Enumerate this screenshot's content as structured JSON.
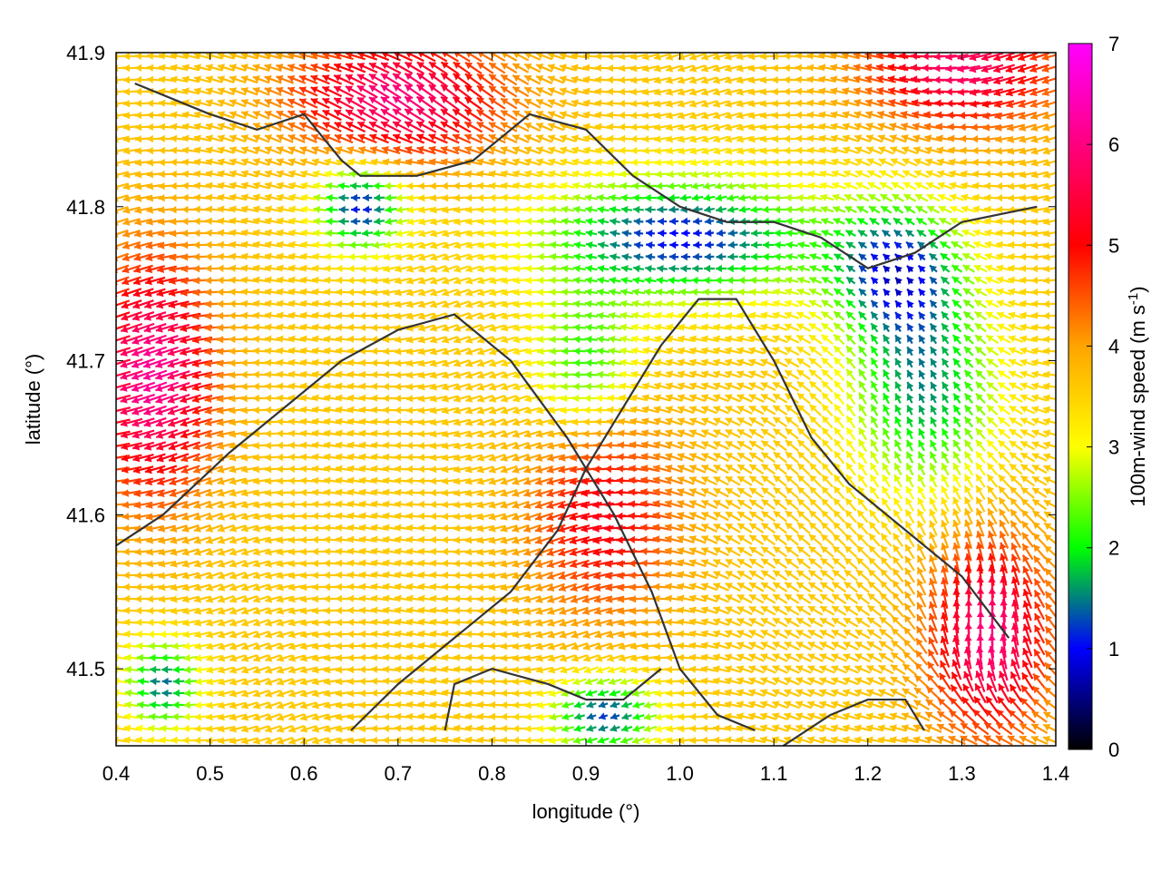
{
  "chart_data": {
    "type": "vector-field",
    "xlabel": "longitude (°)",
    "ylabel": "latitude (°)",
    "xlim": [
      0.4,
      1.4
    ],
    "ylim": [
      41.45,
      41.9
    ],
    "xticks": [
      "0.4",
      "0.5",
      "0.6",
      "0.7",
      "0.8",
      "0.9",
      "1.0",
      "1.1",
      "1.2",
      "1.3",
      "1.4"
    ],
    "yticks": [
      "41.5",
      "41.6",
      "41.7",
      "41.8",
      "41.9"
    ],
    "colorbar": {
      "label_main": "100m-wind speed (m s",
      "label_sup": "-1",
      "label_close": ")",
      "ticks": [
        "0",
        "1",
        "2",
        "3",
        "4",
        "5",
        "6",
        "7"
      ],
      "range": [
        0,
        7
      ],
      "palette": [
        "#000000",
        "#0000ff",
        "#00ff00",
        "#ffff00",
        "#ffa500",
        "#ff0000",
        "#ff00ff"
      ]
    },
    "coastline": [
      [
        [
          0.42,
          41.88
        ],
        [
          0.5,
          41.86
        ],
        [
          0.55,
          41.85
        ],
        [
          0.6,
          41.86
        ],
        [
          0.64,
          41.83
        ],
        [
          0.66,
          41.82
        ],
        [
          0.72,
          41.82
        ],
        [
          0.78,
          41.83
        ],
        [
          0.84,
          41.86
        ],
        [
          0.9,
          41.85
        ],
        [
          0.95,
          41.82
        ],
        [
          1.0,
          41.8
        ],
        [
          1.05,
          41.79
        ],
        [
          1.1,
          41.79
        ],
        [
          1.15,
          41.78
        ],
        [
          1.2,
          41.76
        ],
        [
          1.25,
          41.77
        ],
        [
          1.3,
          41.79
        ],
        [
          1.38,
          41.8
        ]
      ],
      [
        [
          0.4,
          41.58
        ],
        [
          0.45,
          41.6
        ],
        [
          0.52,
          41.64
        ],
        [
          0.58,
          41.67
        ],
        [
          0.64,
          41.7
        ],
        [
          0.7,
          41.72
        ],
        [
          0.76,
          41.73
        ],
        [
          0.82,
          41.7
        ],
        [
          0.88,
          41.65
        ],
        [
          0.93,
          41.6
        ],
        [
          0.97,
          41.55
        ],
        [
          1.0,
          41.5
        ],
        [
          1.04,
          41.47
        ],
        [
          1.08,
          41.46
        ]
      ],
      [
        [
          0.65,
          41.46
        ],
        [
          0.7,
          41.49
        ],
        [
          0.76,
          41.52
        ],
        [
          0.82,
          41.55
        ],
        [
          0.87,
          41.59
        ],
        [
          0.9,
          41.63
        ],
        [
          0.94,
          41.67
        ],
        [
          0.98,
          41.71
        ],
        [
          1.02,
          41.74
        ],
        [
          1.06,
          41.74
        ],
        [
          1.1,
          41.7
        ],
        [
          1.14,
          41.65
        ],
        [
          1.18,
          41.62
        ],
        [
          1.22,
          41.6
        ],
        [
          1.26,
          41.58
        ],
        [
          1.3,
          41.56
        ],
        [
          1.35,
          41.52
        ]
      ],
      [
        [
          1.11,
          41.45
        ],
        [
          1.16,
          41.47
        ],
        [
          1.2,
          41.48
        ],
        [
          1.24,
          41.48
        ],
        [
          1.26,
          41.46
        ]
      ],
      [
        [
          0.75,
          41.46
        ],
        [
          0.76,
          41.49
        ],
        [
          0.8,
          41.5
        ],
        [
          0.86,
          41.49
        ],
        [
          0.9,
          41.48
        ],
        [
          0.94,
          41.48
        ],
        [
          0.98,
          41.5
        ]
      ]
    ]
  }
}
